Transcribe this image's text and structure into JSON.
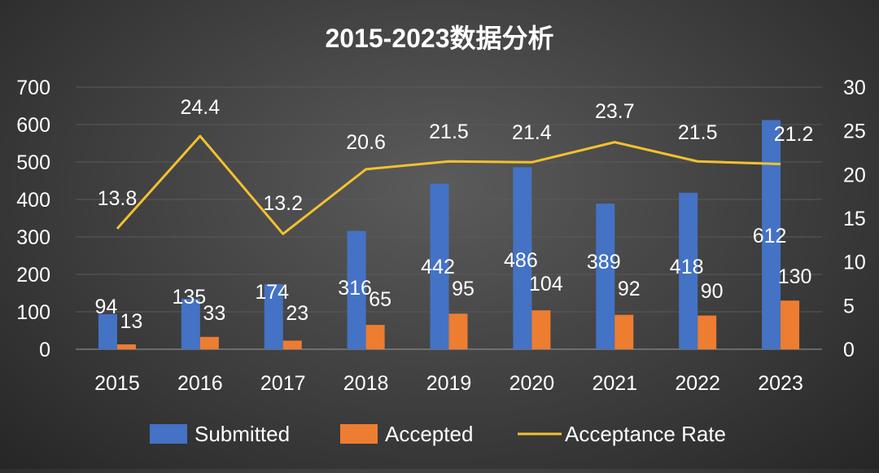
{
  "chart_data": {
    "type": "bar",
    "title": "2015-2023数据分析",
    "categories": [
      "2015",
      "2016",
      "2017",
      "2018",
      "2019",
      "2020",
      "2021",
      "2022",
      "2023"
    ],
    "series": [
      {
        "name": "Submitted",
        "type": "bar",
        "axis": "left",
        "color": "#4472C4",
        "values": [
          94,
          135,
          174,
          316,
          442,
          486,
          389,
          418,
          612
        ]
      },
      {
        "name": "Accepted",
        "type": "bar",
        "axis": "left",
        "color": "#ED7D31",
        "values": [
          13,
          33,
          23,
          65,
          95,
          104,
          92,
          90,
          130
        ]
      },
      {
        "name": "Acceptance Rate",
        "type": "line",
        "axis": "right",
        "color": "#F2C12E",
        "values": [
          13.8,
          24.4,
          13.2,
          20.6,
          21.5,
          21.4,
          23.7,
          21.5,
          21.2
        ]
      }
    ],
    "y_left": {
      "min": 0,
      "max": 700,
      "ticks": [
        0,
        100,
        200,
        300,
        400,
        500,
        600,
        700
      ]
    },
    "y_right": {
      "min": 0,
      "max": 30,
      "ticks": [
        0,
        5,
        10,
        15,
        20,
        25,
        30
      ]
    },
    "legend_position": "bottom",
    "grid": true
  }
}
